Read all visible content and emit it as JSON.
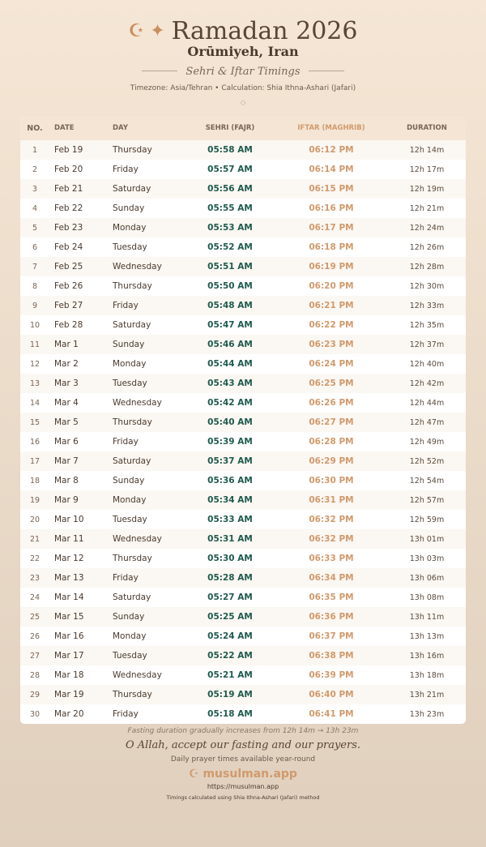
{
  "header": {
    "title": "Ramadan 2026",
    "icons": [
      "crescent-star-icon",
      "sparkle-icon"
    ],
    "city": "Orūmiyeh, Iran",
    "subtitle": "Sehri & Iftar Timings",
    "meta": "Timezone: Asia/Tehran • Calculation: Shia Ithna-Ashari (Jafari)",
    "divider": "◇"
  },
  "table": {
    "columns": [
      "NO.",
      "DATE",
      "DAY",
      "SEHRI (FAJR)",
      "IFTAR (MAGHRIB)",
      "DURATION"
    ],
    "rows": [
      [
        "1",
        "Feb 19",
        "Thursday",
        "05:58 AM",
        "06:12 PM",
        "12h 14m"
      ],
      [
        "2",
        "Feb 20",
        "Friday",
        "05:57 AM",
        "06:14 PM",
        "12h 17m"
      ],
      [
        "3",
        "Feb 21",
        "Saturday",
        "05:56 AM",
        "06:15 PM",
        "12h 19m"
      ],
      [
        "4",
        "Feb 22",
        "Sunday",
        "05:55 AM",
        "06:16 PM",
        "12h 21m"
      ],
      [
        "5",
        "Feb 23",
        "Monday",
        "05:53 AM",
        "06:17 PM",
        "12h 24m"
      ],
      [
        "6",
        "Feb 24",
        "Tuesday",
        "05:52 AM",
        "06:18 PM",
        "12h 26m"
      ],
      [
        "7",
        "Feb 25",
        "Wednesday",
        "05:51 AM",
        "06:19 PM",
        "12h 28m"
      ],
      [
        "8",
        "Feb 26",
        "Thursday",
        "05:50 AM",
        "06:20 PM",
        "12h 30m"
      ],
      [
        "9",
        "Feb 27",
        "Friday",
        "05:48 AM",
        "06:21 PM",
        "12h 33m"
      ],
      [
        "10",
        "Feb 28",
        "Saturday",
        "05:47 AM",
        "06:22 PM",
        "12h 35m"
      ],
      [
        "11",
        "Mar 1",
        "Sunday",
        "05:46 AM",
        "06:23 PM",
        "12h 37m"
      ],
      [
        "12",
        "Mar 2",
        "Monday",
        "05:44 AM",
        "06:24 PM",
        "12h 40m"
      ],
      [
        "13",
        "Mar 3",
        "Tuesday",
        "05:43 AM",
        "06:25 PM",
        "12h 42m"
      ],
      [
        "14",
        "Mar 4",
        "Wednesday",
        "05:42 AM",
        "06:26 PM",
        "12h 44m"
      ],
      [
        "15",
        "Mar 5",
        "Thursday",
        "05:40 AM",
        "06:27 PM",
        "12h 47m"
      ],
      [
        "16",
        "Mar 6",
        "Friday",
        "05:39 AM",
        "06:28 PM",
        "12h 49m"
      ],
      [
        "17",
        "Mar 7",
        "Saturday",
        "05:37 AM",
        "06:29 PM",
        "12h 52m"
      ],
      [
        "18",
        "Mar 8",
        "Sunday",
        "05:36 AM",
        "06:30 PM",
        "12h 54m"
      ],
      [
        "19",
        "Mar 9",
        "Monday",
        "05:34 AM",
        "06:31 PM",
        "12h 57m"
      ],
      [
        "20",
        "Mar 10",
        "Tuesday",
        "05:33 AM",
        "06:32 PM",
        "12h 59m"
      ],
      [
        "21",
        "Mar 11",
        "Wednesday",
        "05:31 AM",
        "06:32 PM",
        "13h 01m"
      ],
      [
        "22",
        "Mar 12",
        "Thursday",
        "05:30 AM",
        "06:33 PM",
        "13h 03m"
      ],
      [
        "23",
        "Mar 13",
        "Friday",
        "05:28 AM",
        "06:34 PM",
        "13h 06m"
      ],
      [
        "24",
        "Mar 14",
        "Saturday",
        "05:27 AM",
        "06:35 PM",
        "13h 08m"
      ],
      [
        "25",
        "Mar 15",
        "Sunday",
        "05:25 AM",
        "06:36 PM",
        "13h 11m"
      ],
      [
        "26",
        "Mar 16",
        "Monday",
        "05:24 AM",
        "06:37 PM",
        "13h 13m"
      ],
      [
        "27",
        "Mar 17",
        "Tuesday",
        "05:22 AM",
        "06:38 PM",
        "13h 16m"
      ],
      [
        "28",
        "Mar 18",
        "Wednesday",
        "05:21 AM",
        "06:39 PM",
        "13h 18m"
      ],
      [
        "29",
        "Mar 19",
        "Thursday",
        "05:19 AM",
        "06:40 PM",
        "13h 21m"
      ],
      [
        "30",
        "Mar 20",
        "Friday",
        "05:18 AM",
        "06:41 PM",
        "13h 23m"
      ]
    ]
  },
  "footer": {
    "note": "Fasting duration gradually increases from 12h 14m → 13h 23m",
    "dua": "O Allah, accept our fasting and our prayers.",
    "daily": "Daily prayer times available year-round",
    "brand": "☪ musulman.app",
    "url": "https://musulman.app",
    "calc": "Timings calculated using Shia Ithna-Ashari (Jafari) method"
  },
  "colors": {
    "sehri": "#1f5a4e",
    "iftar": "#d09a6c",
    "accent": "#c98f5f"
  }
}
